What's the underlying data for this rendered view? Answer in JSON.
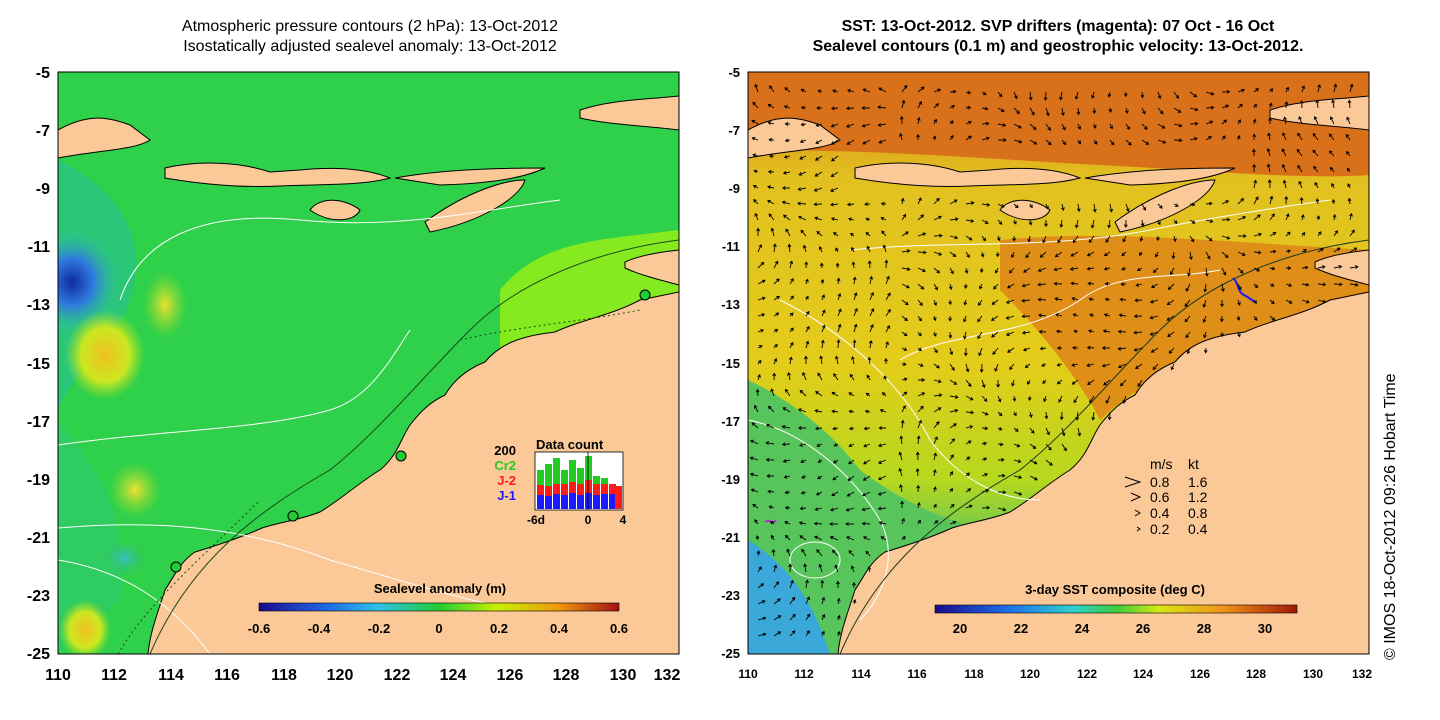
{
  "left_panel": {
    "title_line1": "Atmospheric pressure contours (2 hPa): 13-Oct-2012",
    "title_line2": "Isostatically adjusted sealevel anomaly: 13-Oct-2012",
    "colorbar_label": "Sealevel anomaly (m)",
    "colorbar_ticks": [
      "-0.6",
      "-0.4",
      "-0.2",
      "0",
      "0.2",
      "0.4",
      "0.6"
    ],
    "y_ticks": [
      "-5",
      "-7",
      "-9",
      "-11",
      "-13",
      "-15",
      "-17",
      "-19",
      "-21",
      "-23",
      "-25"
    ],
    "x_ticks": [
      "110",
      "112",
      "114",
      "116",
      "118",
      "120",
      "122",
      "124",
      "126",
      "128",
      "130",
      "132"
    ],
    "inset": {
      "title": "Data count",
      "y_max_label": "200",
      "series": [
        {
          "name": "Cr2",
          "color": "#22cc22"
        },
        {
          "name": "J-2",
          "color": "#ff1a1a"
        },
        {
          "name": "J-1",
          "color": "#1a1aff"
        }
      ],
      "x_labels": [
        "-6d",
        "0",
        "4"
      ]
    }
  },
  "right_panel": {
    "title_line1": "SST: 13-Oct-2012. SVP drifters (magenta): 07 Oct - 16 Oct",
    "title_line2": "Sealevel contours (0.1 m) and geostrophic velocity: 13-Oct-2012.",
    "colorbar_label": "3-day SST composite (deg C)",
    "colorbar_ticks": [
      "20",
      "22",
      "24",
      "26",
      "28",
      "30"
    ],
    "y_ticks": [
      "-5",
      "-7",
      "-9",
      "-11",
      "-13",
      "-15",
      "-17",
      "-19",
      "-21",
      "-23",
      "-25"
    ],
    "x_ticks": [
      "110",
      "112",
      "114",
      "116",
      "118",
      "120",
      "122",
      "124",
      "126",
      "128",
      "130",
      "132"
    ],
    "velocity_legend": {
      "header_ms": "m/s",
      "header_kt": "kt",
      "rows": [
        {
          "ms": "0.8",
          "kt": "1.6"
        },
        {
          "ms": "0.6",
          "kt": "1.2"
        },
        {
          "ms": "0.4",
          "kt": "0.8"
        },
        {
          "ms": "0.2",
          "kt": "0.4"
        }
      ]
    }
  },
  "credit": "© IMOS 18-Oct-2012 09:26 Hobart Time",
  "colors": {
    "land": "#fbc898",
    "ocean_left": "#2fd04a",
    "ocean_right": "#e9d21a",
    "sst_warm": "#d97a14",
    "sst_cool": "#3bc06a"
  }
}
